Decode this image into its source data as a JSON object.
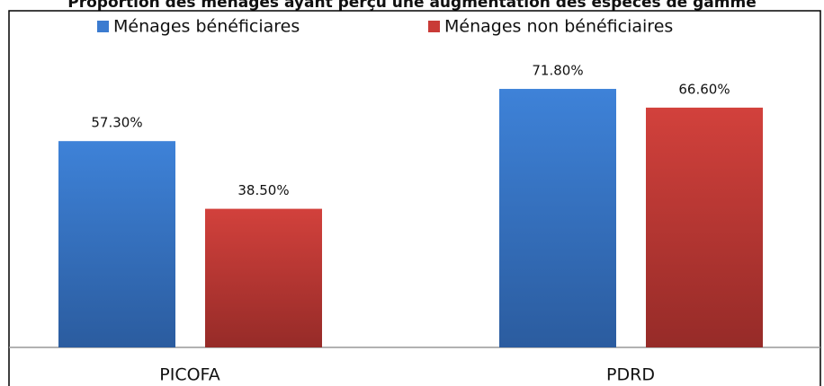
{
  "chart_data": {
    "type": "bar",
    "title": "Proportion des ménages ayant perçu une augmentation des espèces de gamme",
    "categories": [
      "PICOFA",
      "PDRD"
    ],
    "series": [
      {
        "name": "Ménages bénéficiares",
        "color": "#3b7bd0",
        "values": [
          57.3,
          71.8
        ],
        "value_labels": [
          "57.30%",
          "71.80%"
        ]
      },
      {
        "name": "Ménages non bénéficiaires",
        "color": "#c93b37",
        "values": [
          38.5,
          66.6
        ],
        "value_labels": [
          "38.50%",
          "66.60%"
        ]
      }
    ],
    "ylim": [
      0,
      93.5
    ],
    "legend": "top"
  }
}
